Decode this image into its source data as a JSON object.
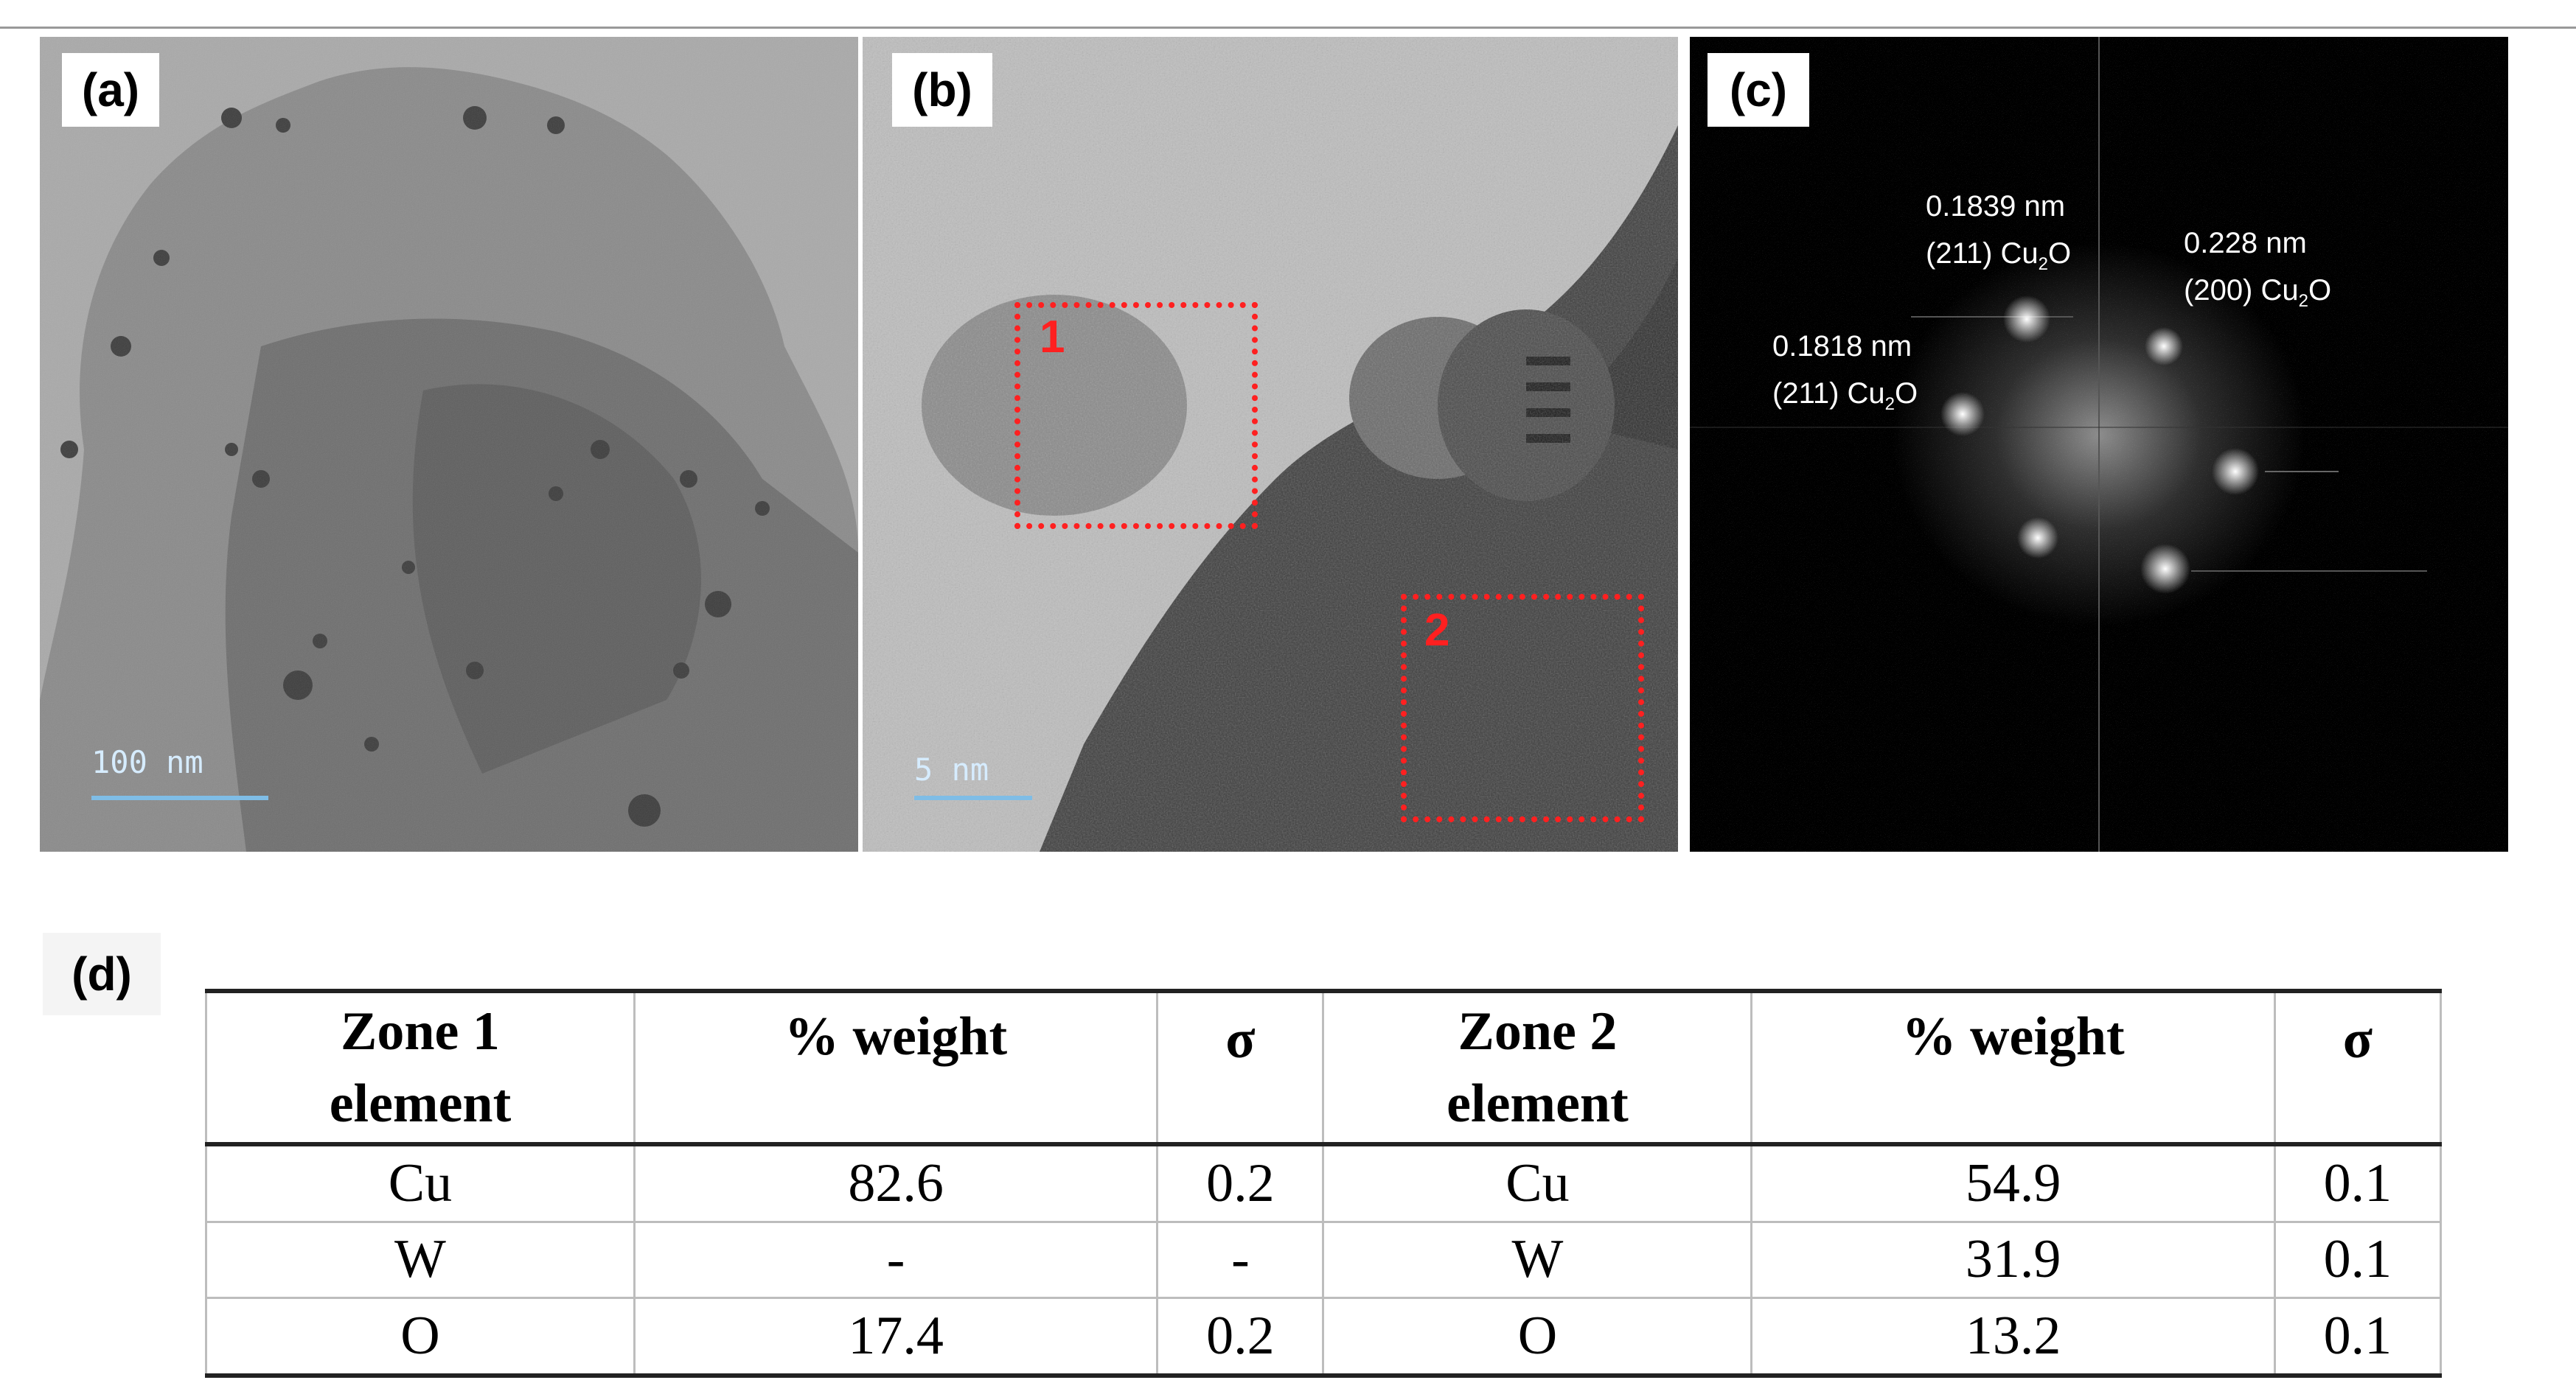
{
  "figure": {
    "panel_a": {
      "label": "(a)",
      "scale_bar": "100 nm"
    },
    "panel_b": {
      "label": "(b)",
      "scale_bar": "5 nm",
      "zone1": "1",
      "zone2": "2"
    },
    "panel_c": {
      "label": "(c)",
      "spots": [
        {
          "d": "0.1839 nm",
          "plane": "(211) Cu",
          "sub": "2",
          "tail": "O"
        },
        {
          "d": "0.228 nm",
          "plane": "(200) Cu",
          "sub": "2",
          "tail": "O"
        },
        {
          "d": "0.1818 nm",
          "plane": "(211) Cu",
          "sub": "2",
          "tail": "O"
        }
      ]
    },
    "panel_d": {
      "label": "(d)",
      "table": {
        "headers": {
          "z1a": "Zone 1",
          "z1b": "element",
          "w1": "% weight",
          "s1": "σ",
          "z2a": "Zone 2",
          "z2b": "element",
          "w2": "% weight",
          "s2": "σ"
        },
        "rows": [
          [
            "Cu",
            "82.6",
            "0.2",
            "Cu",
            "54.9",
            "0.1"
          ],
          [
            "W",
            "-",
            "-",
            "W",
            "31.9",
            "0.1"
          ],
          [
            "O",
            "17.4",
            "0.2",
            "O",
            "13.2",
            "0.1"
          ]
        ]
      }
    }
  }
}
